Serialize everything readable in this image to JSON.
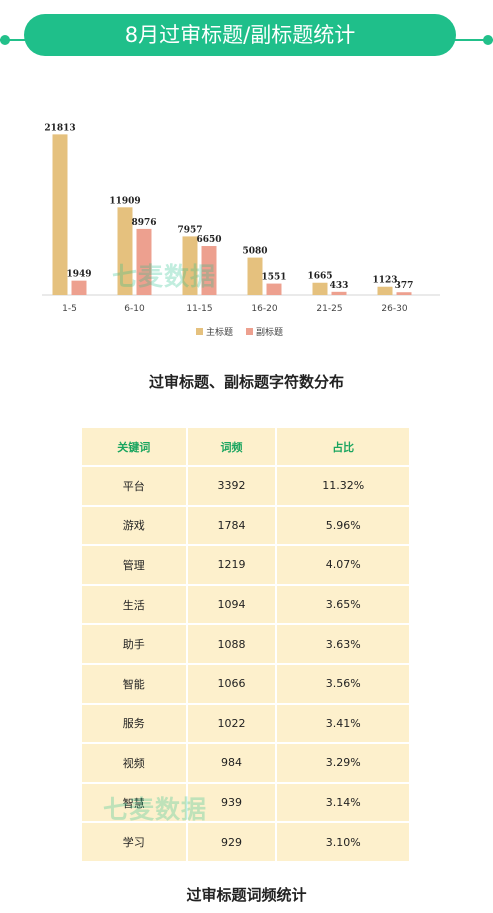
{
  "banner": {
    "title": "8月过审标题/副标题统计"
  },
  "chart_data": {
    "type": "bar",
    "categories": [
      "1-5",
      "6-10",
      "11-15",
      "16-20",
      "21-25",
      "26-30"
    ],
    "series": [
      {
        "name": "主标题",
        "values": [
          21813,
          11909,
          7957,
          5080,
          1665,
          1123
        ],
        "color": "#e5c17e"
      },
      {
        "name": "副标题",
        "values": [
          1949,
          8976,
          6650,
          1551,
          433,
          377
        ],
        "color": "#eda08f"
      }
    ],
    "caption": "过审标题、副标题字符数分布",
    "ylim": [
      0,
      22000
    ],
    "legend_position": "bottom"
  },
  "table": {
    "headers": [
      "关键词",
      "词频",
      "占比"
    ],
    "rows": [
      [
        "平台",
        "3392",
        "11.32%"
      ],
      [
        "游戏",
        "1784",
        "5.96%"
      ],
      [
        "管理",
        "1219",
        "4.07%"
      ],
      [
        "生活",
        "1094",
        "3.65%"
      ],
      [
        "助手",
        "1088",
        "3.63%"
      ],
      [
        "智能",
        "1066",
        "3.56%"
      ],
      [
        "服务",
        "1022",
        "3.41%"
      ],
      [
        "视频",
        "984",
        "3.29%"
      ],
      [
        "智慧",
        "939",
        "3.14%"
      ],
      [
        "学习",
        "929",
        "3.10%"
      ]
    ],
    "caption": "过审标题词频统计"
  },
  "watermark": "七麦数据"
}
